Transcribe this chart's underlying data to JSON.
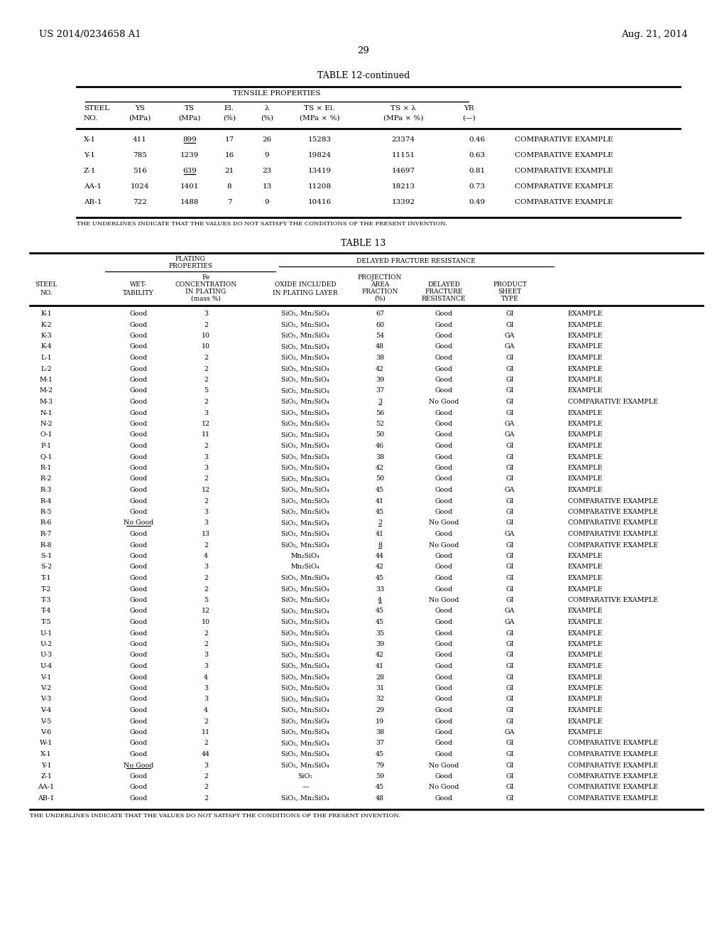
{
  "page_header_left": "US 2014/0234658 A1",
  "page_header_right": "Aug. 21, 2014",
  "page_number": "29",
  "t12_title": "TABLE 12-continued",
  "t12_tensile": "TENSILE PROPERTIES",
  "t12_footnote": "THE UNDERLINES INDICATE THAT THE VALUES DO NOT SATISFY THE CONDITIONS OF THE PRESENT INVENTION.",
  "t13_title": "TABLE 13",
  "t13_footnote": "THE UNDERLINES INDICATE THAT THE VALUES DO NOT SATISFY THE CONDITIONS OF THE PRESENT INVENTION.",
  "t12_data": [
    [
      "X-1",
      "411",
      "899",
      true,
      "17",
      "26",
      "15283",
      "23374",
      "0.46",
      "COMPARATIVE EXAMPLE"
    ],
    [
      "Y-1",
      "785",
      "1239",
      false,
      "16",
      "9",
      "19824",
      "11151",
      "0.63",
      "COMPARATIVE EXAMPLE"
    ],
    [
      "Z-1",
      "516",
      "639",
      true,
      "21",
      "23",
      "13419",
      "14697",
      "0.81",
      "COMPARATIVE EXAMPLE"
    ],
    [
      "AA-1",
      "1024",
      "1401",
      false,
      "8",
      "13",
      "11208",
      "18213",
      "0.73",
      "COMPARATIVE EXAMPLE"
    ],
    [
      "AB-1",
      "722",
      "1488",
      false,
      "7",
      "9",
      "10416",
      "13392",
      "0.49",
      "COMPARATIVE EXAMPLE"
    ]
  ],
  "t13_data": [
    [
      "K-1",
      "Good",
      false,
      "3",
      "SiO₂, Mn₂SiO₄",
      "67",
      false,
      "Good",
      "GI",
      "EXAMPLE"
    ],
    [
      "K-2",
      "Good",
      false,
      "2",
      "SiO₂, Mn₂SiO₄",
      "60",
      false,
      "Good",
      "GI",
      "EXAMPLE"
    ],
    [
      "K-3",
      "Good",
      false,
      "10",
      "SiO₂, Mn₂SiO₄",
      "54",
      false,
      "Good",
      "GA",
      "EXAMPLE"
    ],
    [
      "K-4",
      "Good",
      false,
      "10",
      "SiO₂, Mn₂SiO₄",
      "48",
      false,
      "Good",
      "GA",
      "EXAMPLE"
    ],
    [
      "L-1",
      "Good",
      false,
      "2",
      "SiO₂, Mn₂SiO₄",
      "38",
      false,
      "Good",
      "GI",
      "EXAMPLE"
    ],
    [
      "L-2",
      "Good",
      false,
      "2",
      "SiO₂, Mn₂SiO₄",
      "42",
      false,
      "Good",
      "GI",
      "EXAMPLE"
    ],
    [
      "M-1",
      "Good",
      false,
      "2",
      "SiO₂, Mn₂SiO₄",
      "39",
      false,
      "Good",
      "GI",
      "EXAMPLE"
    ],
    [
      "M-2",
      "Good",
      false,
      "5",
      "SiO₂, Mn₂SiO₄",
      "37",
      false,
      "Good",
      "GI",
      "EXAMPLE"
    ],
    [
      "M-3",
      "Good",
      false,
      "2",
      "SiO₂, Mn₂SiO₄",
      "3",
      true,
      "No Good",
      "GI",
      "COMPARATIVE EXAMPLE"
    ],
    [
      "N-1",
      "Good",
      false,
      "3",
      "SiO₂, Mn₂SiO₄",
      "56",
      false,
      "Good",
      "GI",
      "EXAMPLE"
    ],
    [
      "N-2",
      "Good",
      false,
      "12",
      "SiO₂, Mn₂SiO₄",
      "52",
      false,
      "Good",
      "GA",
      "EXAMPLE"
    ],
    [
      "O-1",
      "Good",
      false,
      "11",
      "SiO₂, Mn₂SiO₄",
      "50",
      false,
      "Good",
      "GA",
      "EXAMPLE"
    ],
    [
      "P-1",
      "Good",
      false,
      "2",
      "SiO₂, Mn₂SiO₄",
      "46",
      false,
      "Good",
      "GI",
      "EXAMPLE"
    ],
    [
      "Q-1",
      "Good",
      false,
      "3",
      "SiO₂, Mn₂SiO₄",
      "38",
      false,
      "Good",
      "GI",
      "EXAMPLE"
    ],
    [
      "R-1",
      "Good",
      false,
      "3",
      "SiO₂, Mn₂SiO₄",
      "42",
      false,
      "Good",
      "GI",
      "EXAMPLE"
    ],
    [
      "R-2",
      "Good",
      false,
      "2",
      "SiO₂, Mn₂SiO₄",
      "50",
      false,
      "Good",
      "GI",
      "EXAMPLE"
    ],
    [
      "R-3",
      "Good",
      false,
      "12",
      "SiO₂, Mn₂SiO₄",
      "45",
      false,
      "Good",
      "GA",
      "EXAMPLE"
    ],
    [
      "R-4",
      "Good",
      false,
      "2",
      "SiO₂, Mn₂SiO₄",
      "41",
      false,
      "Good",
      "GI",
      "COMPARATIVE EXAMPLE"
    ],
    [
      "R-5",
      "Good",
      false,
      "3",
      "SiO₂, Mn₂SiO₄",
      "45",
      false,
      "Good",
      "GI",
      "COMPARATIVE EXAMPLE"
    ],
    [
      "R-6",
      "No Good",
      true,
      "3",
      "SiO₂, Mn₂SiO₄",
      "2",
      true,
      "No Good",
      "GI",
      "COMPARATIVE EXAMPLE"
    ],
    [
      "R-7",
      "Good",
      false,
      "13",
      "SiO₂, Mn₂SiO₄",
      "41",
      false,
      "Good",
      "GA",
      "COMPARATIVE EXAMPLE"
    ],
    [
      "R-8",
      "Good",
      false,
      "2",
      "SiO₂, Mn₂SiO₄",
      "8",
      true,
      "No Good",
      "GI",
      "COMPARATIVE EXAMPLE"
    ],
    [
      "S-1",
      "Good",
      false,
      "4",
      "Mn₂SiO₄",
      "44",
      false,
      "Good",
      "GI",
      "EXAMPLE"
    ],
    [
      "S-2",
      "Good",
      false,
      "3",
      "Mn₂SiO₄",
      "42",
      false,
      "Good",
      "GI",
      "EXAMPLE"
    ],
    [
      "T-1",
      "Good",
      false,
      "2",
      "SiO₂, Mn₂SiO₄",
      "45",
      false,
      "Good",
      "GI",
      "EXAMPLE"
    ],
    [
      "T-2",
      "Good",
      false,
      "2",
      "SiO₂, Mn₂SiO₄",
      "33",
      false,
      "Good",
      "GI",
      "EXAMPLE"
    ],
    [
      "T-3",
      "Good",
      false,
      "5",
      "SiO₂, Mn₂SiO₄",
      "4",
      true,
      "No Good",
      "GI",
      "COMPARATIVE EXAMPLE"
    ],
    [
      "T-4",
      "Good",
      false,
      "12",
      "SiO₂, Mn₂SiO₄",
      "45",
      false,
      "Good",
      "GA",
      "EXAMPLE"
    ],
    [
      "T-5",
      "Good",
      false,
      "10",
      "SiO₂, Mn₂SiO₄",
      "45",
      false,
      "Good",
      "GA",
      "EXAMPLE"
    ],
    [
      "U-1",
      "Good",
      false,
      "2",
      "SiO₂, Mn₂SiO₄",
      "35",
      false,
      "Good",
      "GI",
      "EXAMPLE"
    ],
    [
      "U-2",
      "Good",
      false,
      "2",
      "SiO₂, Mn₂SiO₄",
      "39",
      false,
      "Good",
      "GI",
      "EXAMPLE"
    ],
    [
      "U-3",
      "Good",
      false,
      "3",
      "SiO₂, Mn₂SiO₄",
      "42",
      false,
      "Good",
      "GI",
      "EXAMPLE"
    ],
    [
      "U-4",
      "Good",
      false,
      "3",
      "SiO₂, Mn₂SiO₄",
      "41",
      false,
      "Good",
      "GI",
      "EXAMPLE"
    ],
    [
      "V-1",
      "Good",
      false,
      "4",
      "SiO₂, Mn₂SiO₄",
      "28",
      false,
      "Good",
      "GI",
      "EXAMPLE"
    ],
    [
      "V-2",
      "Good",
      false,
      "3",
      "SiO₂, Mn₂SiO₄",
      "31",
      false,
      "Good",
      "GI",
      "EXAMPLE"
    ],
    [
      "V-3",
      "Good",
      false,
      "3",
      "SiO₂, Mn₂SiO₄",
      "32",
      false,
      "Good",
      "GI",
      "EXAMPLE"
    ],
    [
      "V-4",
      "Good",
      false,
      "4",
      "SiO₂, Mn₂SiO₄",
      "29",
      false,
      "Good",
      "GI",
      "EXAMPLE"
    ],
    [
      "V-5",
      "Good",
      false,
      "2",
      "SiO₂, Mn₂SiO₄",
      "19",
      false,
      "Good",
      "GI",
      "EXAMPLE"
    ],
    [
      "V-6",
      "Good",
      false,
      "11",
      "SiO₂, Mn₂SiO₄",
      "38",
      false,
      "Good",
      "GA",
      "EXAMPLE"
    ],
    [
      "W-1",
      "Good",
      false,
      "2",
      "SiO₂, Mn₂SiO₄",
      "37",
      false,
      "Good",
      "GI",
      "COMPARATIVE EXAMPLE"
    ],
    [
      "X-1",
      "Good",
      false,
      "44",
      "SiO₂, Mn₂SiO₄",
      "45",
      false,
      "Good",
      "GI",
      "COMPARATIVE EXAMPLE"
    ],
    [
      "Y-1",
      "No Good",
      true,
      "3",
      "SiO₂, Mn₂SiO₄",
      "79",
      false,
      "No Good",
      "GI",
      "COMPARATIVE EXAMPLE"
    ],
    [
      "Z-1",
      "Good",
      false,
      "2",
      "SiO₂",
      "59",
      false,
      "Good",
      "GI",
      "COMPARATIVE EXAMPLE"
    ],
    [
      "AA-1",
      "Good",
      false,
      "2",
      "—",
      "45",
      false,
      "No Good",
      "GI",
      "COMPARATIVE EXAMPLE"
    ],
    [
      "AB-1",
      "Good",
      false,
      "2",
      "SiO₂, Mn₂SiO₄",
      "48",
      false,
      "Good",
      "GI",
      "COMPARATIVE EXAMPLE"
    ]
  ]
}
